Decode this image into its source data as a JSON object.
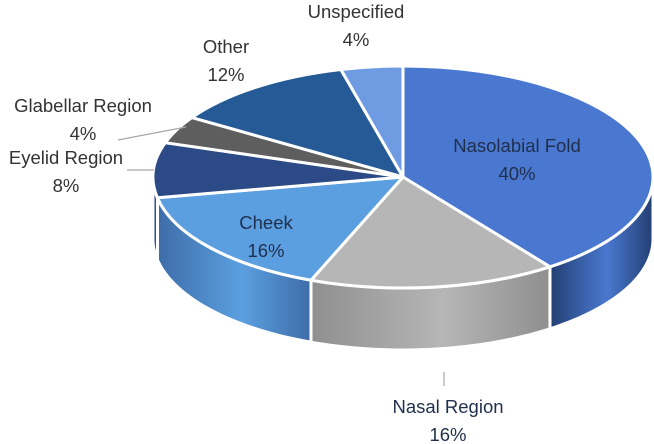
{
  "chart_data": {
    "type": "pie",
    "title": "",
    "slices": [
      {
        "label": "Nasolabial Fold",
        "value": 40,
        "value_label": "40%",
        "color": "#4a78d0",
        "side": "#233f73",
        "label_color": "#1f2f4d",
        "label_pos": "inside"
      },
      {
        "label": "Nasal Region",
        "value": 16,
        "value_label": "16%",
        "color": "#b6b6b6",
        "side": "#8f8f8f",
        "label_color": "#1f2f4d",
        "label_pos": "outside"
      },
      {
        "label": "Cheek",
        "value": 16,
        "value_label": "16%",
        "color": "#5b9fe0",
        "side": "#3e6da8",
        "label_color": "#1f2f4d",
        "label_pos": "inside"
      },
      {
        "label": "Eyelid Region",
        "value": 8,
        "value_label": "8%",
        "color": "#2c4a86",
        "side": "#1b2f59",
        "label_color": "#333333",
        "label_pos": "outside"
      },
      {
        "label": "Glabellar Region",
        "value": 4,
        "value_label": "4%",
        "color": "#5e5e5e",
        "side": "#3e3e3e",
        "label_color": "#333333",
        "label_pos": "outside"
      },
      {
        "label": "Other",
        "value": 12,
        "value_label": "12%",
        "color": "#255a96",
        "side": "#193e69",
        "label_color": "#333333",
        "label_pos": "outside"
      },
      {
        "label": "Unspecified",
        "value": 4,
        "value_label": "4%",
        "color": "#6f9be3",
        "side": "#4b70ad",
        "label_color": "#333333",
        "label_pos": "outside"
      }
    ],
    "legend": "none"
  }
}
